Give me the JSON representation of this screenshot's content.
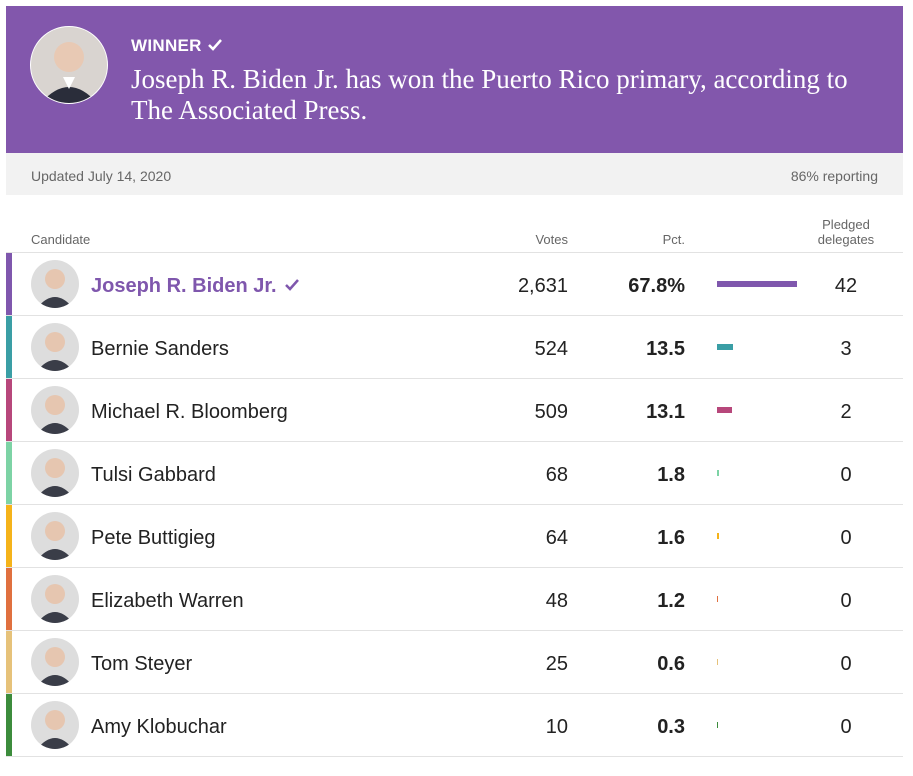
{
  "banner": {
    "label": "WINNER",
    "headline": "Joseph R. Biden Jr. has won the Puerto Rico primary, according to The Associated Press."
  },
  "status": {
    "updated": "Updated July 14, 2020",
    "reporting": "86% reporting"
  },
  "table": {
    "headers": [
      "Candidate",
      "Votes",
      "Pct.",
      "Pledged delegates"
    ],
    "rows": [
      {
        "name": "Joseph R. Biden Jr.",
        "votes": "2,631",
        "pct": "67.8%",
        "delegates": 42,
        "color": "#7f57ad",
        "winner": true
      },
      {
        "name": "Bernie Sanders",
        "votes": "524",
        "pct": "13.5",
        "delegates": 3,
        "color": "#3a9ea5"
      },
      {
        "name": "Michael R. Bloomberg",
        "votes": "509",
        "pct": "13.1",
        "delegates": 2,
        "color": "#b7477b"
      },
      {
        "name": "Tulsi Gabbard",
        "votes": "68",
        "pct": "1.8",
        "delegates": 0,
        "color": "#7dd3a5"
      },
      {
        "name": "Pete Buttigieg",
        "votes": "64",
        "pct": "1.6",
        "delegates": 0,
        "color": "#f5b31a"
      },
      {
        "name": "Elizabeth Warren",
        "votes": "48",
        "pct": "1.2",
        "delegates": 0,
        "color": "#e0703f"
      },
      {
        "name": "Tom Steyer",
        "votes": "25",
        "pct": "0.6",
        "delegates": 0,
        "color": "#e6c27a"
      },
      {
        "name": "Amy Klobuchar",
        "votes": "10",
        "pct": "0.3",
        "delegates": 0,
        "color": "#3c8c3c"
      }
    ]
  }
}
